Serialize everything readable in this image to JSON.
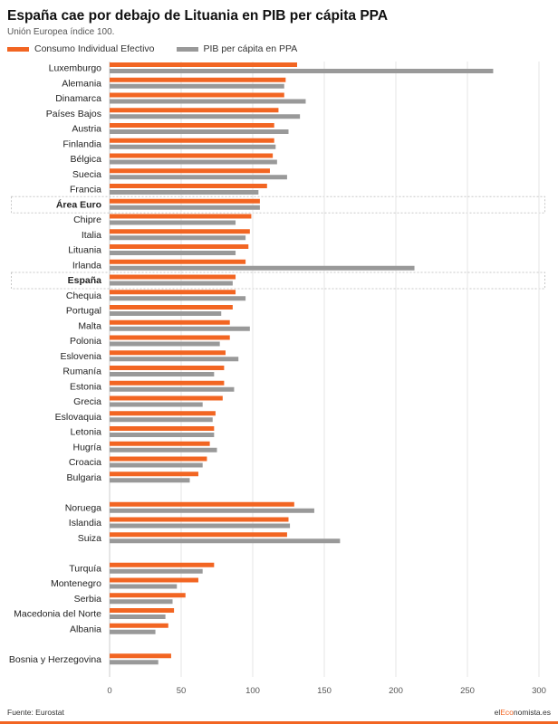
{
  "header": {
    "title": "España cae por debajo de Lituania en PIB per cápita PPA",
    "subtitle": "Unión Europea índice 100."
  },
  "colors": {
    "series1": "#f26522",
    "series2": "#999999",
    "grid": "#e6e6e6",
    "highlight_border": "#c8c8c8",
    "accent": "#f26522"
  },
  "footer": {
    "source": "Fuente: Eurostat",
    "brand_pre": "el",
    "brand_accent": "Eco",
    "brand_post": "nomista.es"
  },
  "chart_data": {
    "type": "bar",
    "orientation": "horizontal",
    "title": "España cae por debajo de Lituania en PIB per cápita PPA",
    "subtitle": "Unión Europea índice 100.",
    "legend_position": "top-left",
    "xlim": [
      0,
      300
    ],
    "xticks": [
      0,
      50,
      100,
      150,
      200,
      250,
      300
    ],
    "grid": true,
    "highlighted": [
      "Área Euro",
      "España"
    ],
    "categories": [
      "Luxemburgo",
      "Alemania",
      "Dinamarca",
      "Países Bajos",
      "Austria",
      "Finlandia",
      "Bélgica",
      "Suecia",
      "Francia",
      "Área Euro",
      "Chipre",
      "Italia",
      "Lituania",
      "Irlanda",
      "España",
      "Chequia",
      "Portugal",
      "Malta",
      "Polonia",
      "Eslovenia",
      "Rumanía",
      "Estonia",
      "Grecia",
      "Eslovaquia",
      "Letonia",
      "Hugría",
      "Croacia",
      "Bulgaria",
      "",
      "Noruega",
      "Islandia",
      "Suiza",
      "",
      "Turquía",
      "Montenegro",
      "Serbia",
      "Macedonia del Norte",
      "Albania",
      "",
      "Bosnia y Herzegovina"
    ],
    "series": [
      {
        "name": "Consumo Individual Efectivo",
        "values": [
          131,
          123,
          122,
          118,
          115,
          115,
          114,
          112,
          110,
          105,
          99,
          98,
          97,
          95,
          88,
          88,
          86,
          84,
          84,
          81,
          80,
          80,
          79,
          74,
          73,
          70,
          68,
          62,
          null,
          129,
          125,
          124,
          null,
          73,
          62,
          53,
          45,
          41,
          null,
          43
        ]
      },
      {
        "name": "PIB per cápita en PPA",
        "values": [
          268,
          122,
          137,
          133,
          125,
          116,
          117,
          124,
          104,
          105,
          88,
          95,
          88,
          213,
          86,
          95,
          78,
          98,
          77,
          90,
          73,
          87,
          65,
          72,
          73,
          75,
          65,
          56,
          null,
          143,
          126,
          161,
          null,
          65,
          47,
          44,
          39,
          32,
          null,
          34
        ]
      }
    ]
  }
}
